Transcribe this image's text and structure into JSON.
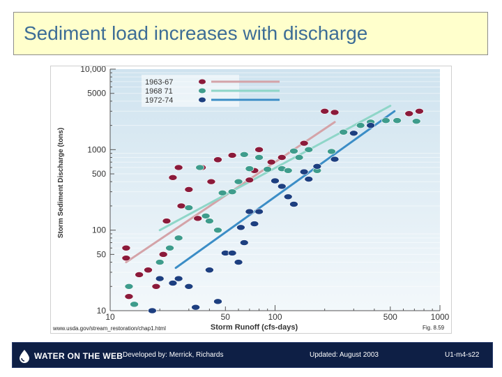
{
  "slide": {
    "title": "Sediment load increases with discharge",
    "source_url": "www.usda.gov/stream_restoration/chap1.html",
    "figure_label": "Fig.  8.59"
  },
  "footer": {
    "brand": "WATER ON THE WEB",
    "developed_by": "Developed by: Merrick, Richards",
    "updated": "Updated: August 2003",
    "slide_code": "U1-m4-s22"
  },
  "colors": {
    "series_1963": "#8b1a3a",
    "series_1968": "#3e9c8c",
    "series_1972": "#1d3f80",
    "line_1963": "#d4a3a8",
    "line_1968": "#8fd6c8",
    "line_1972": "#3b8dc6",
    "footer_bg": "#0e1f45"
  },
  "chart_data": {
    "type": "scatter",
    "title": "",
    "xlabel": "Storm Runoff (cfs-days)",
    "ylabel": "Storm Sediment Discharge (tons)",
    "xscale": "log",
    "yscale": "log",
    "xlim": [
      10,
      1000
    ],
    "ylim": [
      10,
      10000
    ],
    "x_ticks": [
      "10",
      "50",
      "100",
      "500",
      "1000"
    ],
    "x_tick_values": [
      10,
      50,
      100,
      500,
      1000
    ],
    "y_ticks": [
      "10",
      "50",
      "100",
      "500",
      "1000",
      "5000",
      "10,000"
    ],
    "y_tick_values": [
      10,
      50,
      100,
      500,
      1000,
      5000,
      10000
    ],
    "legend_position": "top-left",
    "series": [
      {
        "name": "1963-67",
        "x": [
          12.5,
          12.5,
          13,
          15,
          17,
          19,
          21,
          22,
          24,
          26,
          27,
          30,
          34,
          36,
          41,
          45,
          55,
          70,
          75,
          80,
          95,
          110,
          150,
          200,
          230,
          650,
          750
        ],
        "y": [
          60,
          45,
          15,
          28,
          32,
          20,
          50,
          130,
          450,
          600,
          200,
          320,
          140,
          600,
          400,
          750,
          850,
          420,
          550,
          1000,
          700,
          800,
          1200,
          3000,
          2900,
          2800,
          3000
        ],
        "fit": [
          [
            12.5,
            40
          ],
          [
            230,
            2200
          ]
        ]
      },
      {
        "name": "1968 71",
        "x": [
          13,
          14,
          20,
          23,
          26,
          30,
          35,
          38,
          40,
          45,
          48,
          55,
          60,
          65,
          70,
          80,
          90,
          110,
          120,
          130,
          140,
          160,
          180,
          220,
          260,
          330,
          380,
          470,
          550,
          720
        ],
        "y": [
          20,
          12,
          40,
          60,
          80,
          190,
          600,
          150,
          130,
          100,
          290,
          300,
          400,
          870,
          580,
          800,
          570,
          580,
          550,
          960,
          800,
          1000,
          550,
          950,
          1650,
          2000,
          2200,
          2300,
          2300,
          2250
        ],
        "fit": [
          [
            20,
            100
          ],
          [
            500,
            3500
          ]
        ]
      },
      {
        "name": "1972-74",
        "x": [
          18,
          20,
          24,
          26,
          30,
          33,
          40,
          45,
          50,
          55,
          60,
          62,
          65,
          70,
          75,
          80,
          100,
          110,
          120,
          130,
          150,
          160,
          180,
          230,
          300,
          380
        ],
        "y": [
          10,
          25,
          22,
          25,
          20,
          11,
          32,
          13,
          52,
          52,
          40,
          108,
          70,
          170,
          120,
          170,
          410,
          350,
          260,
          210,
          530,
          430,
          620,
          760,
          1600,
          2000
        ],
        "fit": [
          [
            25,
            34
          ],
          [
            530,
            3000
          ]
        ]
      }
    ]
  }
}
